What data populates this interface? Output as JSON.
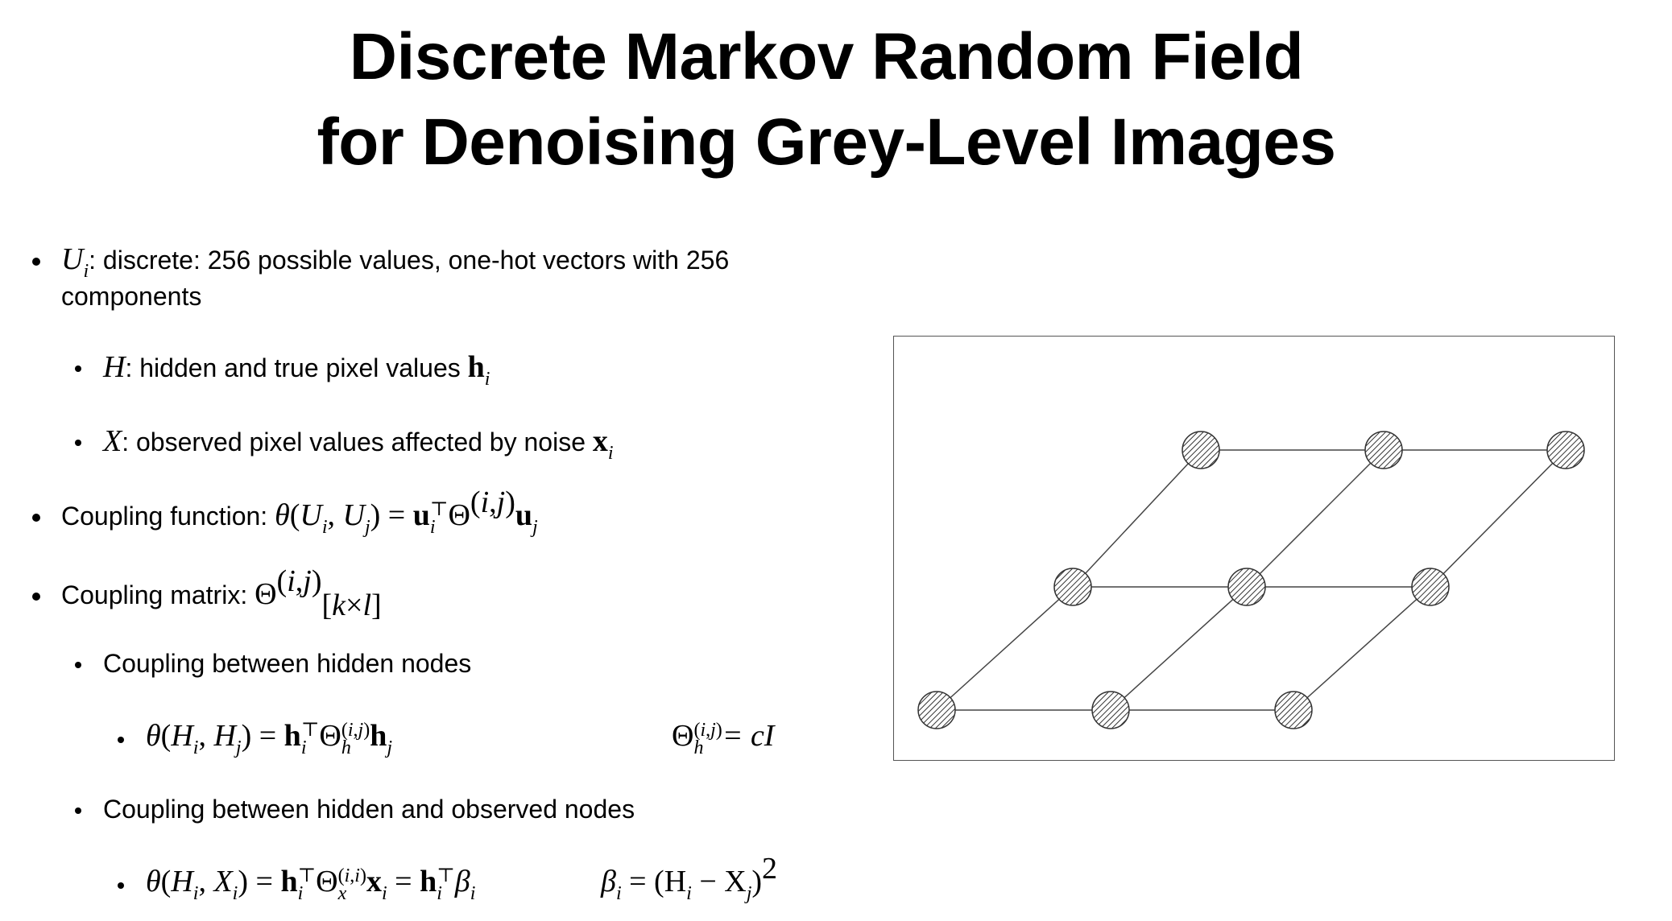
{
  "title": {
    "line1": "Discrete Markov Random Field",
    "line2": "for Denoising Grey-Level Images"
  },
  "bullets": {
    "u_var": "U",
    "u_sub": "i",
    "u_text": ": discrete: 256 possible values, one-hot vectors with 256",
    "u_text2": "components",
    "h_var": "H",
    "h_text": ": hidden and true pixel values ",
    "h_vec": "h",
    "h_sub": "i",
    "x_var": "X",
    "x_text": ": observed pixel values affected by noise ",
    "x_vec": "x",
    "x_sub": "i",
    "coupling_function_label": "Coupling function: ",
    "coupling_matrix_label": "Coupling matrix: ",
    "hidden_coupling_label": "Coupling between hidden nodes",
    "hidden_observed_label": "Coupling between hidden and observed nodes",
    "identity_scale": "= cI",
    "beta_def": "β",
    "beta_rhs": " = (H",
    "beta_minus": " − X",
    "beta_close": ")"
  },
  "figure": {
    "node_style": "hatched-circle",
    "edge_color": "#444444",
    "node_fill": "#ffffff",
    "hatch_color": "#333333"
  }
}
